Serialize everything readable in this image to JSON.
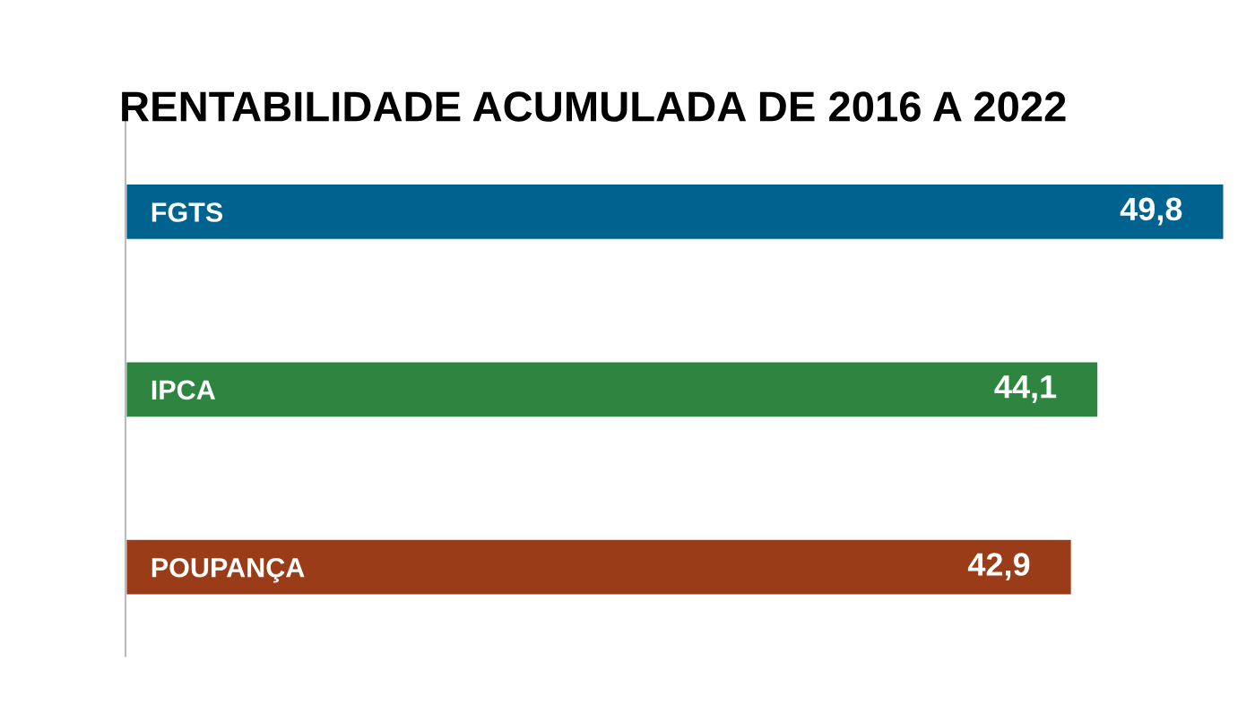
{
  "chart_data": {
    "type": "bar",
    "orientation": "horizontal",
    "title": "RENTABILIDADE ACUMULADA DE 2016 A 2022",
    "categories": [
      "FGTS",
      "IPCA",
      "POUPANÇA"
    ],
    "values": [
      49.8,
      44.1,
      42.9
    ],
    "value_labels": [
      "49,8",
      "44,1",
      "42,9"
    ],
    "colors": [
      "#00628f",
      "#2e8540",
      "#9a3c17"
    ],
    "grid": false,
    "legend": false
  }
}
